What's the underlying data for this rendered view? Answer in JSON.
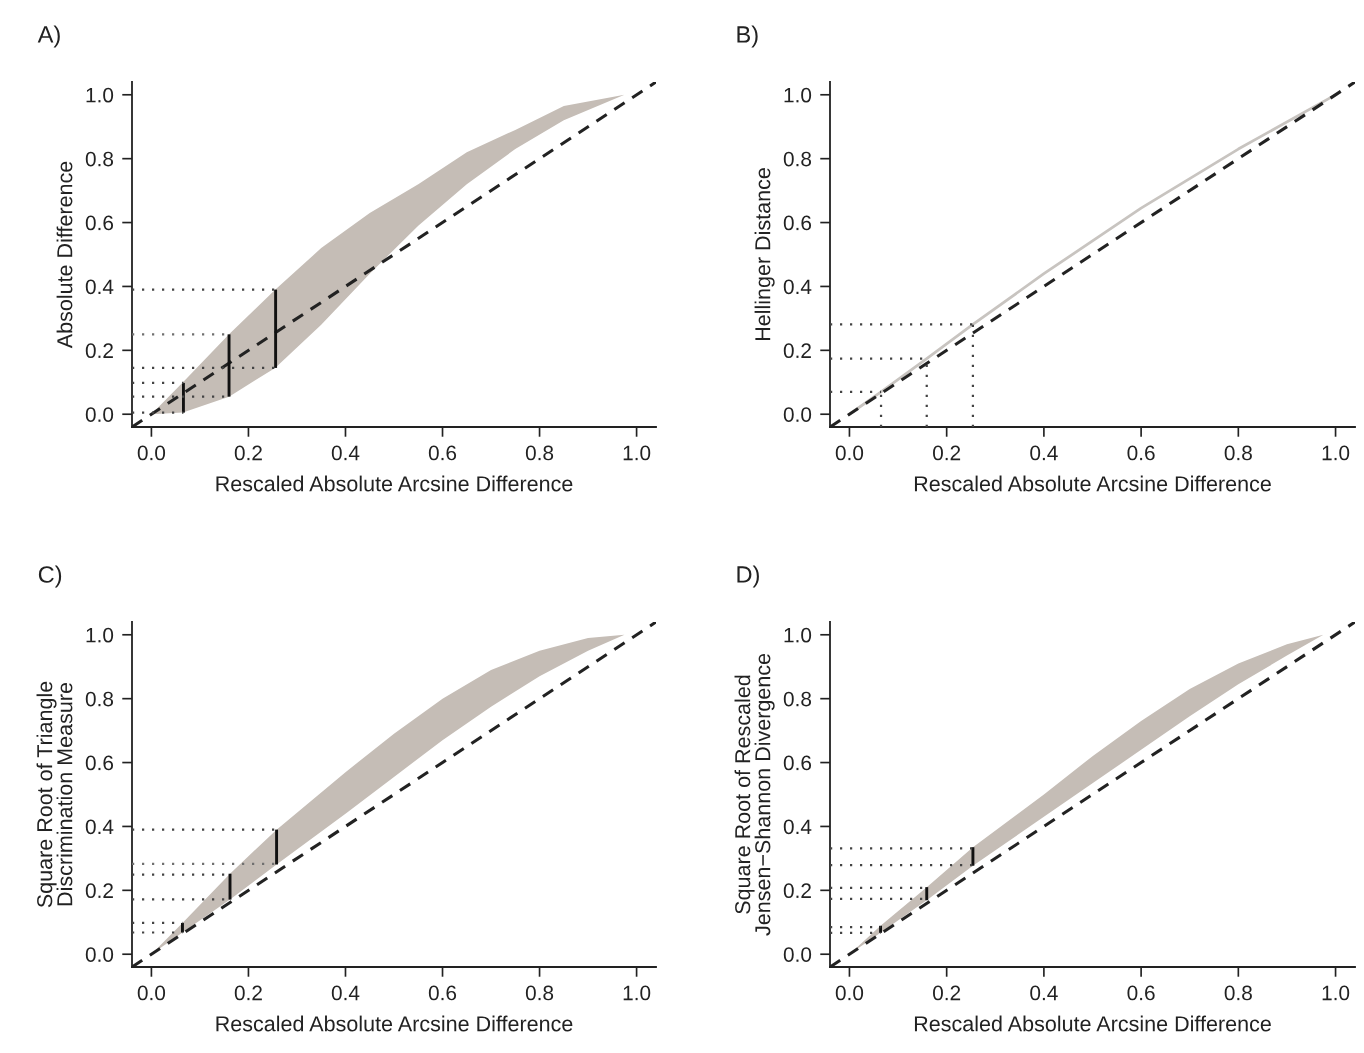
{
  "chart_data": [
    {
      "type": "line",
      "title": "A)",
      "xlabel": "Rescaled Absolute Arcsine Difference",
      "ylabel": "Absolute Difference",
      "xlim": [
        -0.04,
        1.04
      ],
      "ylim": [
        -0.04,
        1.04
      ],
      "xticks": [
        {
          "value": 0,
          "label": "0.0"
        },
        {
          "value": 0.2,
          "label": "0.2"
        },
        {
          "value": 0.4,
          "label": "0.4"
        },
        {
          "value": 0.6,
          "label": "0.6"
        },
        {
          "value": 0.8,
          "label": "0.8"
        },
        {
          "value": 1,
          "label": "1.0"
        }
      ],
      "yticks": [
        {
          "value": 0,
          "label": "0.0"
        },
        {
          "value": 0.2,
          "label": "0.2"
        },
        {
          "value": 0.4,
          "label": "0.4"
        },
        {
          "value": 0.6,
          "label": "0.6"
        },
        {
          "value": 0.8,
          "label": "0.8"
        },
        {
          "value": 1,
          "label": "1.0"
        }
      ],
      "series": [
        {
          "type": "area",
          "color": "#c5bdb6",
          "x": [
            0,
            0.065,
            0.16,
            0.255,
            0.35,
            0.45,
            0.55,
            0.65,
            0.75,
            0.85,
            0.975
          ],
          "values": [
            null,
            null,
            null,
            null,
            null,
            null,
            null,
            null,
            null,
            null,
            null
          ],
          "upper": [
            0,
            0.1,
            0.25,
            0.39,
            0.52,
            0.63,
            0.72,
            0.82,
            0.89,
            0.965,
            1.0
          ],
          "lower": [
            0,
            0.005,
            0.055,
            0.145,
            0.28,
            0.44,
            0.59,
            0.72,
            0.83,
            0.92,
            1.0
          ]
        },
        {
          "color": "#222222",
          "line_style": "dashed",
          "x": [
            -0.04,
            1.04
          ],
          "values": [
            -0.04,
            1.04
          ]
        },
        {
          "color": "#444444",
          "line_style": "dotted",
          "x": [
            -0.04,
            0.256
          ],
          "values": [
            0.39,
            0.39
          ]
        },
        {
          "color": "#707070",
          "line_style": "dotted",
          "x": [
            -0.04,
            0.16
          ],
          "values": [
            0.25,
            0.25
          ]
        },
        {
          "color": "#444444",
          "line_style": "dotted",
          "x": [
            -0.04,
            0.256
          ],
          "values": [
            0.145,
            0.145
          ]
        },
        {
          "color": "#444444",
          "line_style": "dotted",
          "x": [
            -0.04,
            0.066
          ],
          "values": [
            0.098,
            0.098
          ]
        },
        {
          "color": "#444444",
          "line_style": "dotted",
          "x": [
            -0.04,
            0.16
          ],
          "values": [
            0.055,
            0.055
          ]
        },
        {
          "color": "#444444",
          "line_style": "dotted",
          "x": [
            -0.04,
            0.066
          ],
          "values": [
            0.005,
            0.005
          ]
        },
        {
          "type": "bar",
          "color": "#111111",
          "x": [
            0.066,
            0.16,
            0.256
          ],
          "base": [
            0.005,
            0.055,
            0.145
          ],
          "values": [
            0.093,
            0.195,
            0.245
          ]
        }
      ]
    },
    {
      "type": "line",
      "title": "B)",
      "xlabel": "Rescaled Absolute Arcsine Difference",
      "ylabel": "Hellinger Distance",
      "xlim": [
        -0.04,
        1.04
      ],
      "ylim": [
        -0.04,
        1.04
      ],
      "xticks": [
        {
          "value": 0,
          "label": "0.0"
        },
        {
          "value": 0.2,
          "label": "0.2"
        },
        {
          "value": 0.4,
          "label": "0.4"
        },
        {
          "value": 0.6,
          "label": "0.6"
        },
        {
          "value": 0.8,
          "label": "0.8"
        },
        {
          "value": 1,
          "label": "1.0"
        }
      ],
      "yticks": [
        {
          "value": 0,
          "label": "0.0"
        },
        {
          "value": 0.2,
          "label": "0.2"
        },
        {
          "value": 0.4,
          "label": "0.4"
        },
        {
          "value": 0.6,
          "label": "0.6"
        },
        {
          "value": 0.8,
          "label": "0.8"
        },
        {
          "value": 1,
          "label": "1.0"
        }
      ],
      "series": [
        {
          "color": "#c8c4c0",
          "x": [
            0,
            0.065,
            0.159,
            0.254,
            0.4,
            0.6,
            0.8,
            1.0
          ],
          "values": [
            0,
            0.07,
            0.174,
            0.281,
            0.44,
            0.645,
            0.83,
            1.0
          ]
        },
        {
          "color": "#222222",
          "line_style": "dashed",
          "x": [
            -0.04,
            1.04
          ],
          "values": [
            -0.04,
            1.04
          ]
        },
        {
          "color": "#444444",
          "line_style": "dotted",
          "x": [
            -0.04,
            0.254
          ],
          "values": [
            0.281,
            0.281
          ]
        },
        {
          "color": "#444444",
          "line_style": "dotted",
          "x": [
            -0.04,
            0.159
          ],
          "values": [
            0.174,
            0.174
          ]
        },
        {
          "color": "#444444",
          "line_style": "dotted",
          "x": [
            -0.04,
            0.065
          ],
          "values": [
            0.07,
            0.07
          ]
        },
        {
          "color": "#444444",
          "line_style": "dotted",
          "x": [
            0.254,
            0.254
          ],
          "values": [
            -0.04,
            0.281
          ]
        },
        {
          "color": "#444444",
          "line_style": "dotted",
          "x": [
            0.159,
            0.159
          ],
          "values": [
            -0.04,
            0.174
          ]
        },
        {
          "color": "#444444",
          "line_style": "dotted",
          "x": [
            0.065,
            0.065
          ],
          "values": [
            -0.04,
            0.07
          ]
        }
      ]
    },
    {
      "type": "line",
      "title": "C)",
      "xlabel": "Rescaled Absolute Arcsine Difference",
      "ylabel": "Square Root of Triangle\nDiscrimination Measure",
      "xlim": [
        -0.04,
        1.04
      ],
      "ylim": [
        -0.04,
        1.04
      ],
      "xticks": [
        {
          "value": 0,
          "label": "0.0"
        },
        {
          "value": 0.2,
          "label": "0.2"
        },
        {
          "value": 0.4,
          "label": "0.4"
        },
        {
          "value": 0.6,
          "label": "0.6"
        },
        {
          "value": 0.8,
          "label": "0.8"
        },
        {
          "value": 1,
          "label": "1.0"
        }
      ],
      "yticks": [
        {
          "value": 0,
          "label": "0.0"
        },
        {
          "value": 0.2,
          "label": "0.2"
        },
        {
          "value": 0.4,
          "label": "0.4"
        },
        {
          "value": 0.6,
          "label": "0.6"
        },
        {
          "value": 0.8,
          "label": "0.8"
        },
        {
          "value": 1,
          "label": "1.0"
        }
      ],
      "series": [
        {
          "type": "area",
          "color": "#c5bdb6",
          "x": [
            0,
            0.064,
            0.162,
            0.258,
            0.4,
            0.5,
            0.6,
            0.7,
            0.8,
            0.9,
            0.975
          ],
          "values": [
            null,
            null,
            null,
            null,
            null,
            null,
            null,
            null,
            null,
            null,
            null
          ],
          "upper": [
            0,
            0.098,
            0.252,
            0.39,
            0.57,
            0.69,
            0.8,
            0.89,
            0.95,
            0.99,
            1.0
          ],
          "lower": [
            0,
            0.068,
            0.171,
            0.281,
            0.44,
            0.555,
            0.67,
            0.775,
            0.87,
            0.95,
            1.0
          ]
        },
        {
          "color": "#222222",
          "line_style": "dashed",
          "x": [
            -0.04,
            1.04
          ],
          "values": [
            -0.04,
            1.04
          ]
        },
        {
          "color": "#444444",
          "line_style": "dotted",
          "x": [
            -0.04,
            0.258
          ],
          "values": [
            0.39,
            0.39
          ]
        },
        {
          "color": "#707070",
          "line_style": "dotted",
          "x": [
            -0.04,
            0.258
          ],
          "values": [
            0.283,
            0.283
          ]
        },
        {
          "color": "#444444",
          "line_style": "dotted",
          "x": [
            -0.04,
            0.162
          ],
          "values": [
            0.249,
            0.249
          ]
        },
        {
          "color": "#444444",
          "line_style": "dotted",
          "x": [
            -0.04,
            0.162
          ],
          "values": [
            0.172,
            0.172
          ]
        },
        {
          "color": "#444444",
          "line_style": "dotted",
          "x": [
            -0.04,
            0.064
          ],
          "values": [
            0.098,
            0.098
          ]
        },
        {
          "color": "#444444",
          "line_style": "dotted",
          "x": [
            -0.04,
            0.064
          ],
          "values": [
            0.068,
            0.068
          ]
        },
        {
          "type": "bar",
          "color": "#111111",
          "x": [
            0.064,
            0.162,
            0.258
          ],
          "base": [
            0.068,
            0.171,
            0.281
          ],
          "values": [
            0.03,
            0.081,
            0.109
          ]
        }
      ]
    },
    {
      "type": "line",
      "title": "D)",
      "xlabel": "Rescaled Absolute Arcsine Difference",
      "ylabel": "Square Root of Rescaled\nJensen−Shannon Divergence",
      "xlim": [
        -0.04,
        1.04
      ],
      "ylim": [
        -0.04,
        1.04
      ],
      "xticks": [
        {
          "value": 0,
          "label": "0.0"
        },
        {
          "value": 0.2,
          "label": "0.2"
        },
        {
          "value": 0.4,
          "label": "0.4"
        },
        {
          "value": 0.6,
          "label": "0.6"
        },
        {
          "value": 0.8,
          "label": "0.8"
        },
        {
          "value": 1,
          "label": "1.0"
        }
      ],
      "yticks": [
        {
          "value": 0,
          "label": "0.0"
        },
        {
          "value": 0.2,
          "label": "0.2"
        },
        {
          "value": 0.4,
          "label": "0.4"
        },
        {
          "value": 0.6,
          "label": "0.6"
        },
        {
          "value": 0.8,
          "label": "0.8"
        },
        {
          "value": 1,
          "label": "1.0"
        }
      ],
      "series": [
        {
          "type": "area",
          "color": "#c5bdb6",
          "x": [
            0,
            0.064,
            0.159,
            0.254,
            0.4,
            0.5,
            0.6,
            0.7,
            0.8,
            0.9,
            0.975
          ],
          "values": [
            null,
            null,
            null,
            null,
            null,
            null,
            null,
            null,
            null,
            null,
            null
          ],
          "upper": [
            0,
            0.089,
            0.21,
            0.335,
            0.5,
            0.62,
            0.73,
            0.83,
            0.91,
            0.97,
            1.0
          ],
          "lower": [
            0,
            0.067,
            0.169,
            0.277,
            0.43,
            0.535,
            0.64,
            0.745,
            0.845,
            0.935,
            1.0
          ]
        },
        {
          "color": "#222222",
          "line_style": "dashed",
          "x": [
            -0.04,
            1.04
          ],
          "values": [
            -0.04,
            1.04
          ]
        },
        {
          "color": "#444444",
          "line_style": "dotted",
          "x": [
            -0.04,
            0.254
          ],
          "values": [
            0.331,
            0.331
          ]
        },
        {
          "color": "#444444",
          "line_style": "dotted",
          "x": [
            -0.04,
            0.254
          ],
          "values": [
            0.279,
            0.279
          ]
        },
        {
          "color": "#444444",
          "line_style": "dotted",
          "x": [
            -0.04,
            0.159
          ],
          "values": [
            0.208,
            0.208
          ]
        },
        {
          "color": "#444444",
          "line_style": "dotted",
          "x": [
            -0.04,
            0.159
          ],
          "values": [
            0.173,
            0.173
          ]
        },
        {
          "color": "#444444",
          "line_style": "dotted",
          "x": [
            -0.04,
            0.064
          ],
          "values": [
            0.085,
            0.085
          ]
        },
        {
          "color": "#444444",
          "line_style": "dotted",
          "x": [
            -0.04,
            0.064
          ],
          "values": [
            0.067,
            0.067
          ]
        },
        {
          "type": "bar",
          "color": "#111111",
          "x": [
            0.064,
            0.159,
            0.254
          ],
          "base": [
            0.067,
            0.169,
            0.277
          ],
          "values": [
            0.022,
            0.041,
            0.058
          ]
        }
      ]
    }
  ]
}
